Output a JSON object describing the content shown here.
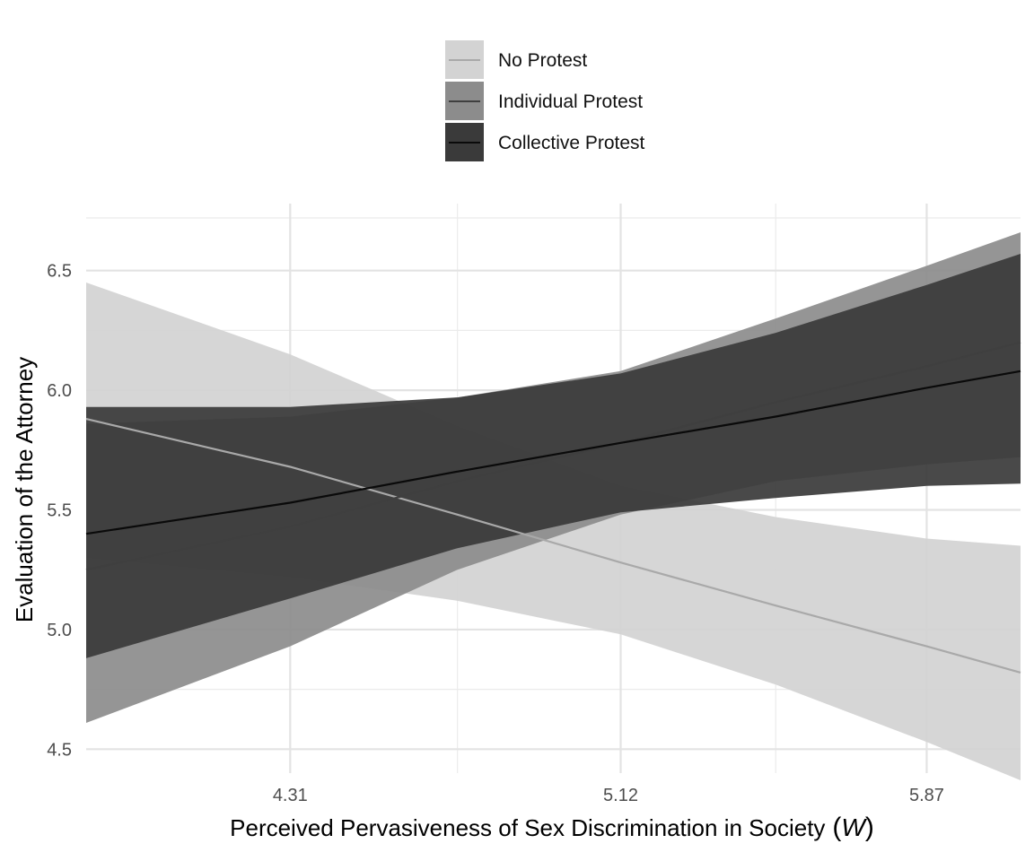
{
  "chart_data": {
    "type": "line",
    "xlabel": "Perceived Pervasiveness of Sex Discrimination in Society",
    "xlabel_var": "W",
    "ylabel": "Evaluation of the Attorney",
    "xlim": [
      3.81,
      6.1
    ],
    "ylim": [
      4.4,
      6.78
    ],
    "x_ticks": [
      4.31,
      5.12,
      5.87
    ],
    "x_tick_labels": [
      "4.31",
      "5.12",
      "5.87"
    ],
    "x_minor_ticks": [
      4.72,
      5.5
    ],
    "y_ticks": [
      4.5,
      5.0,
      5.5,
      6.0,
      6.5
    ],
    "y_tick_labels": [
      "4.5",
      "5.0",
      "5.5",
      "6.0",
      "6.5"
    ],
    "y_minor_ticks": [
      4.75,
      5.25,
      5.75,
      6.25,
      6.72
    ],
    "grid": true,
    "legend_position": "top",
    "series": [
      {
        "name": "No Protest",
        "line_color": "#a9a9a9",
        "band_color": "#d3d3d3",
        "x": [
          3.81,
          4.31,
          4.72,
          5.12,
          5.5,
          5.87,
          6.1
        ],
        "y": [
          5.88,
          5.68,
          5.48,
          5.28,
          5.1,
          4.93,
          4.82
        ],
        "lower": [
          5.3,
          5.22,
          5.12,
          4.98,
          4.77,
          4.53,
          4.37
        ],
        "upper": [
          6.45,
          6.15,
          5.85,
          5.6,
          5.47,
          5.38,
          5.35
        ]
      },
      {
        "name": "Individual Protest",
        "line_color": "#3f3f3f",
        "band_color": "#8c8c8c",
        "x": [
          3.81,
          4.31,
          4.72,
          5.12,
          5.5,
          5.87,
          6.1
        ],
        "y": [
          5.25,
          5.43,
          5.62,
          5.78,
          5.95,
          6.1,
          6.2
        ],
        "lower": [
          4.61,
          4.93,
          5.25,
          5.48,
          5.62,
          5.69,
          5.72
        ],
        "upper": [
          5.86,
          5.89,
          5.97,
          6.08,
          6.3,
          6.52,
          6.66
        ]
      },
      {
        "name": "Collective Protest",
        "line_color": "#0a0a0a",
        "band_color": "#3a3a3a",
        "x": [
          3.81,
          4.31,
          4.72,
          5.12,
          5.5,
          5.87,
          6.1
        ],
        "y": [
          5.4,
          5.53,
          5.66,
          5.78,
          5.89,
          6.01,
          6.08
        ],
        "lower": [
          4.88,
          5.13,
          5.34,
          5.49,
          5.55,
          5.6,
          5.61
        ],
        "upper": [
          5.93,
          5.93,
          5.97,
          6.07,
          6.24,
          6.44,
          6.57
        ]
      }
    ]
  }
}
